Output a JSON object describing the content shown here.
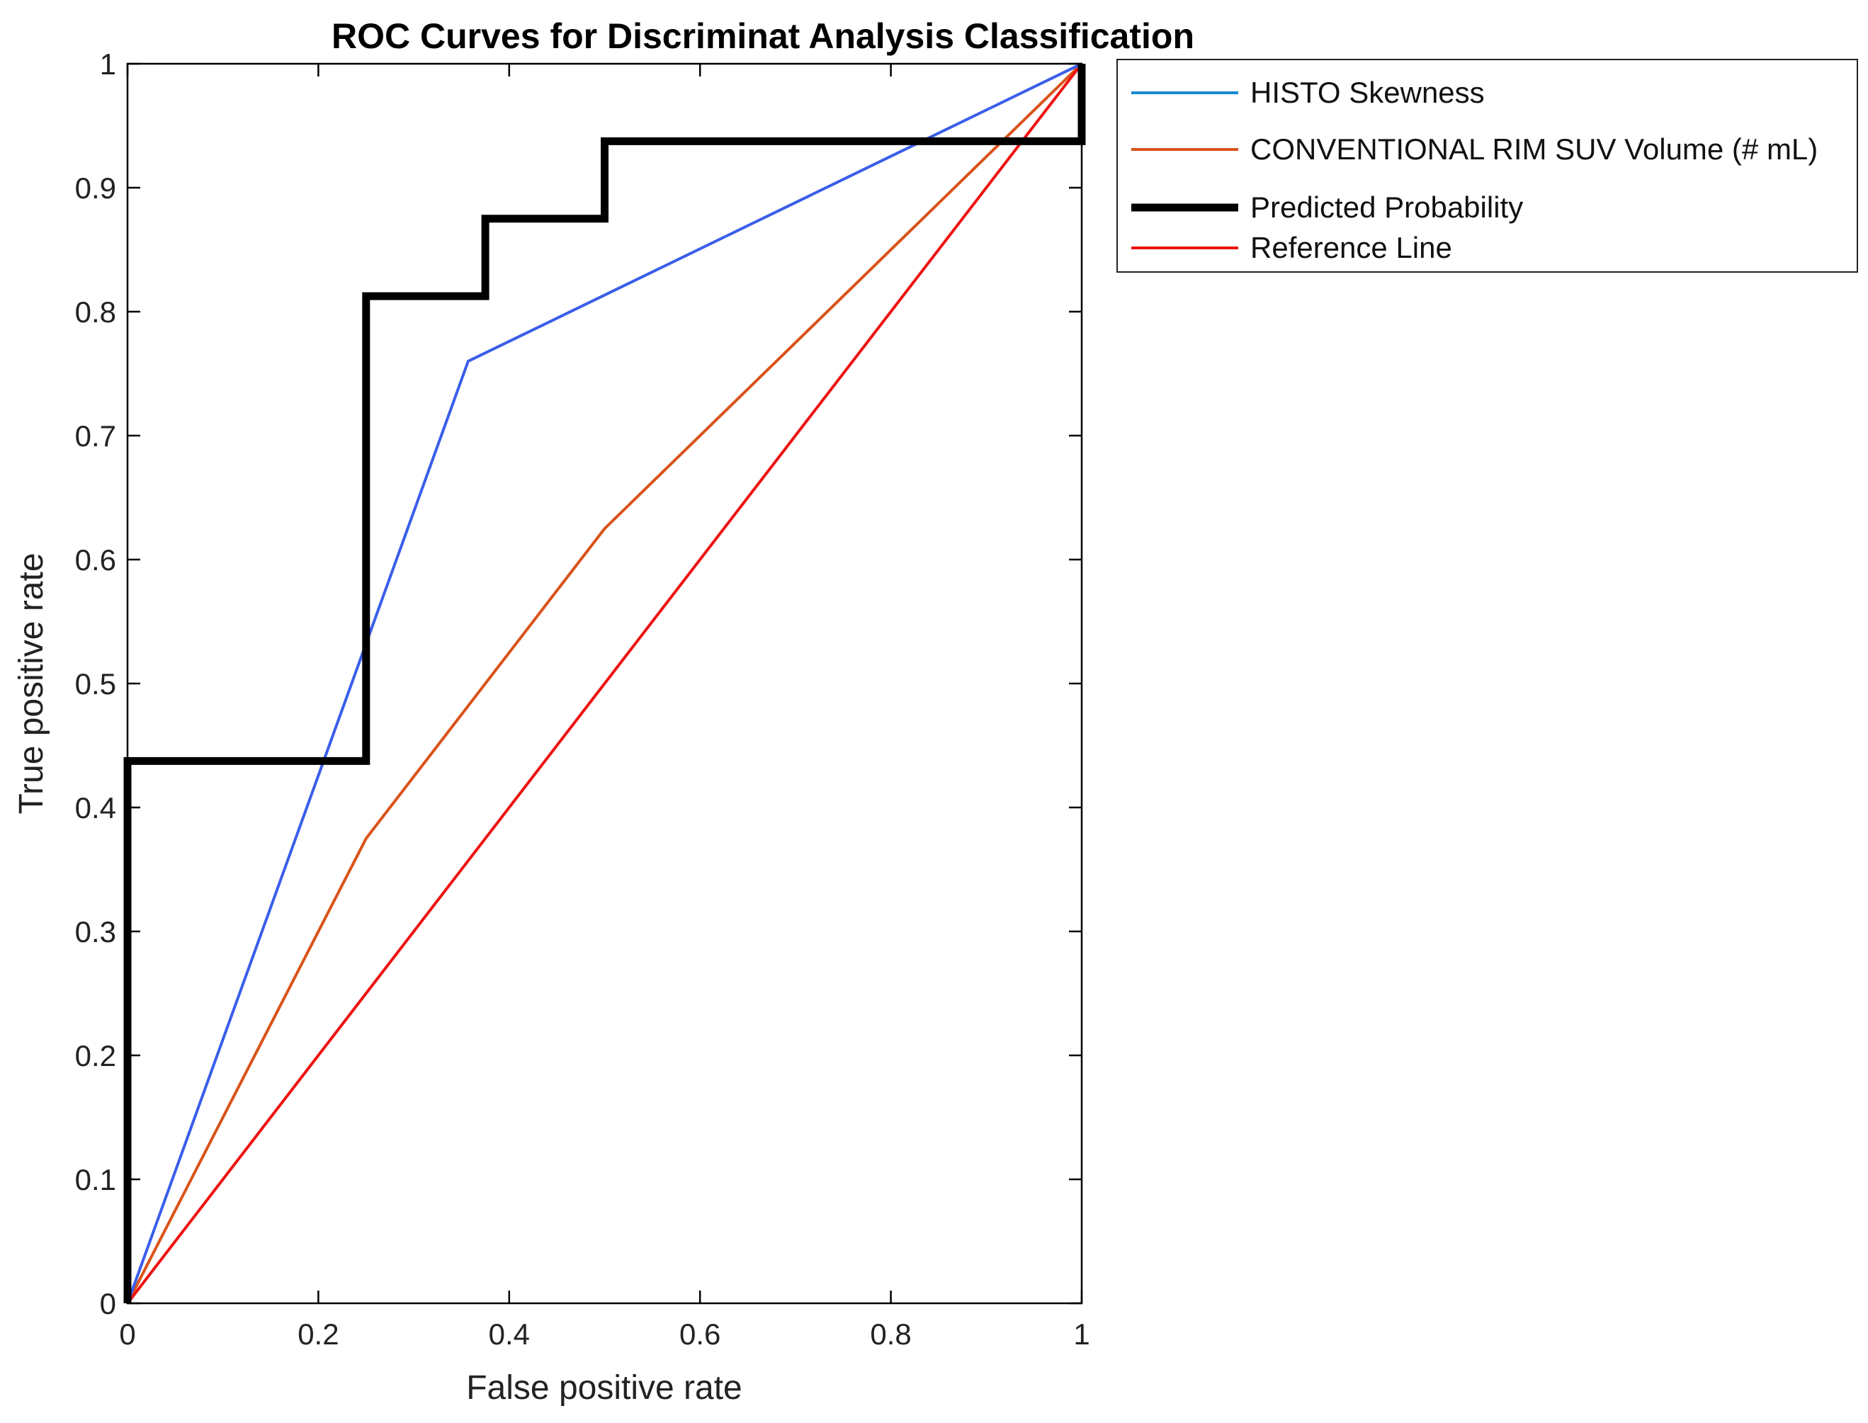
{
  "chart_data": {
    "type": "line",
    "title": "ROC Curves for Discriminat Analysis Classification",
    "xlabel": "False positive rate",
    "ylabel": "True positive rate",
    "xlim": [
      0,
      1
    ],
    "ylim": [
      0,
      1
    ],
    "xticks": [
      0,
      0.2,
      0.4,
      0.6,
      0.8,
      1
    ],
    "xtick_labels": [
      "0",
      "0.2",
      "0.4",
      "0.6",
      "0.8",
      "1"
    ],
    "yticks": [
      0,
      0.1,
      0.2,
      0.3,
      0.4,
      0.5,
      0.6,
      0.7,
      0.8,
      0.9,
      1
    ],
    "ytick_labels": [
      "0",
      "0.1",
      "0.2",
      "0.3",
      "0.4",
      "0.5",
      "0.6",
      "0.7",
      "0.8",
      "0.9",
      "1"
    ],
    "grid": false,
    "legend_position": "outside-top-right",
    "series": [
      {
        "name": "HISTO  Skewness",
        "color": "#3a5eea",
        "legend_color": "#1a8ad4",
        "style": "thin",
        "x": [
          0,
          0.357,
          1
        ],
        "y": [
          0,
          0.76,
          1
        ]
      },
      {
        "name": "CONVENTIONAL  RIM SUV Volume (# mL)",
        "color": "#d95319",
        "legend_color": "#d95319",
        "style": "thin",
        "x": [
          0,
          0.25,
          0.5,
          1
        ],
        "y": [
          0,
          0.375,
          0.625,
          1
        ]
      },
      {
        "name": "Predicted Probability",
        "color": "#000000",
        "legend_color": "#000000",
        "style": "thick",
        "x": [
          0,
          0,
          0.25,
          0.25,
          0.375,
          0.375,
          0.5,
          0.5,
          1,
          1
        ],
        "y": [
          0,
          0.4375,
          0.4375,
          0.8125,
          0.8125,
          0.875,
          0.875,
          0.9375,
          0.9375,
          1
        ]
      },
      {
        "name": "Reference Line",
        "color": "#ee1111",
        "legend_color": "#ee1111",
        "style": "thin",
        "x": [
          0,
          1
        ],
        "y": [
          0,
          1
        ]
      }
    ]
  }
}
